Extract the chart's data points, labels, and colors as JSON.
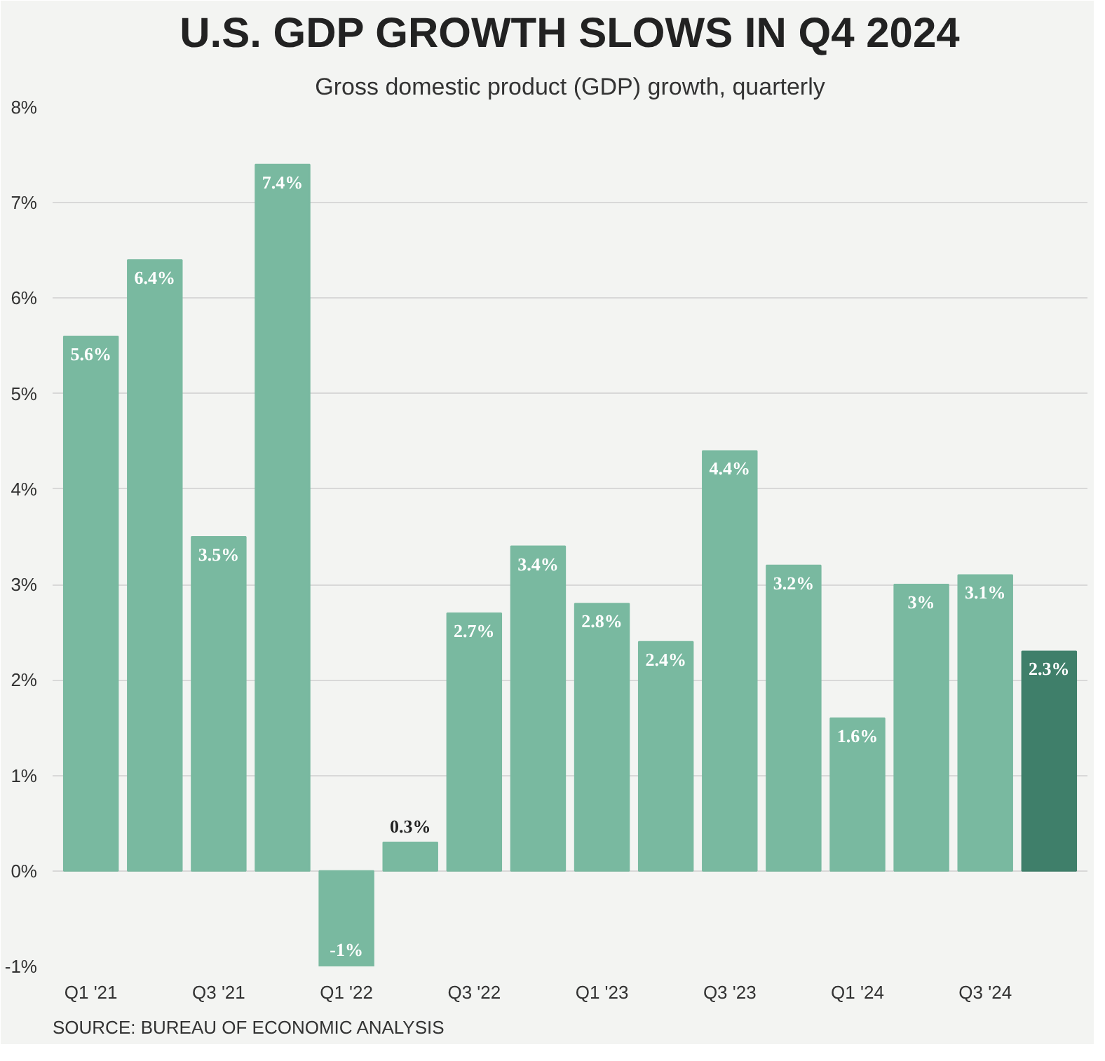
{
  "chart_data": {
    "type": "bar",
    "title": "U.S. GDP GROWTH SLOWS IN Q4 2024",
    "subtitle": "Gross domestic product (GDP) growth, quarterly",
    "categories": [
      "Q1 '21",
      null,
      "Q3 '21",
      null,
      "Q1 '22",
      null,
      "Q3 '22",
      null,
      "Q1 '23",
      null,
      "Q3 '23",
      null,
      "Q1 '24",
      null,
      "Q3 '24",
      null
    ],
    "values": [
      5.6,
      6.4,
      3.5,
      7.4,
      -1,
      0.3,
      2.7,
      3.4,
      2.8,
      2.4,
      4.4,
      3.2,
      1.6,
      3,
      3.1,
      2.3
    ],
    "colors": [
      "#79b9a0",
      "#79b9a0",
      "#79b9a0",
      "#79b9a0",
      "#79b9a0",
      "#79b9a0",
      "#79b9a0",
      "#79b9a0",
      "#79b9a0",
      "#79b9a0",
      "#79b9a0",
      "#79b9a0",
      "#79b9a0",
      "#79b9a0",
      "#79b9a0",
      "#3f7f6a"
    ],
    "value_labels": [
      "5.6%",
      "6.4%",
      "3.5%",
      "7.4%",
      "-1%",
      "0.3%",
      "2.7%",
      "3.4%",
      "2.8%",
      "2.4%",
      "4.4%",
      "3.2%",
      "1.6%",
      "3%",
      "3.1%",
      "2.3%"
    ],
    "ylim": [
      -1,
      8
    ],
    "yticks": [
      {
        "value": -1,
        "label": "-1%"
      },
      {
        "value": 0,
        "label": "0%"
      },
      {
        "value": 1,
        "label": "1%"
      },
      {
        "value": 2,
        "label": "2%"
      },
      {
        "value": 3,
        "label": "3%"
      },
      {
        "value": 4,
        "label": "4%"
      },
      {
        "value": 5,
        "label": "5%"
      },
      {
        "value": 6,
        "label": "6%"
      },
      {
        "value": 7,
        "label": "7%"
      },
      {
        "value": 8,
        "label": "8%"
      }
    ],
    "grid": "y",
    "annotations": [
      "SOURCE: BUREAU OF ECONOMIC ANALYSIS"
    ]
  }
}
